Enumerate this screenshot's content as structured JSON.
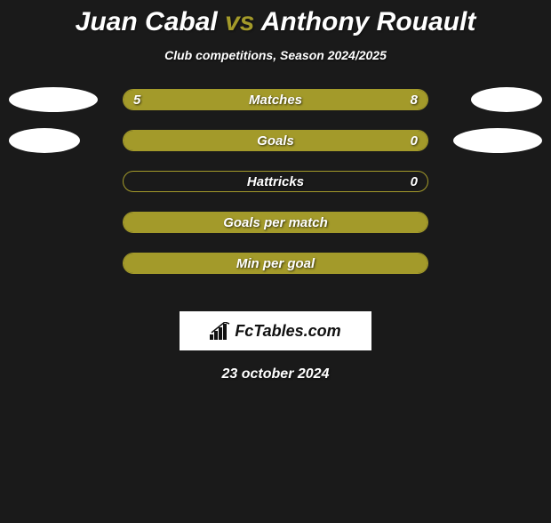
{
  "background_color": "#1a1a1a",
  "accent_color": "#a39a2a",
  "header": {
    "player1": "Juan Cabal",
    "vs": "vs",
    "player2": "Anthony Rouault",
    "subtitle": "Club competitions, Season 2024/2025"
  },
  "bars": {
    "container_width": 344,
    "height": 24,
    "border_color": "#a39a2a",
    "fill_color": "#a39a2a",
    "label_color": "#ffffff",
    "label_fontsize": 15,
    "border_radius": 12
  },
  "bubbles": {
    "color": "#ffffff",
    "height": 28
  },
  "rows": [
    {
      "label": "Matches",
      "left_val": "5",
      "right_val": "8",
      "left_pct": 36,
      "right_pct": 64,
      "bubble_left_w": 100,
      "bubble_right_w": 80
    },
    {
      "label": "Goals",
      "left_val": "",
      "right_val": "0",
      "left_pct": 100,
      "right_pct": 0,
      "bubble_left_w": 80,
      "bubble_right_w": 100
    },
    {
      "label": "Hattricks",
      "left_val": "",
      "right_val": "0",
      "left_pct": 0,
      "right_pct": 0,
      "bubble_left_w": 0,
      "bubble_right_w": 0
    },
    {
      "label": "Goals per match",
      "left_val": "",
      "right_val": "",
      "left_pct": 100,
      "right_pct": 0,
      "bubble_left_w": 0,
      "bubble_right_w": 0
    },
    {
      "label": "Min per goal",
      "left_val": "",
      "right_val": "",
      "left_pct": 100,
      "right_pct": 0,
      "bubble_left_w": 0,
      "bubble_right_w": 0
    }
  ],
  "footer": {
    "brand": "FcTables.com",
    "date": "23 october 2024"
  }
}
